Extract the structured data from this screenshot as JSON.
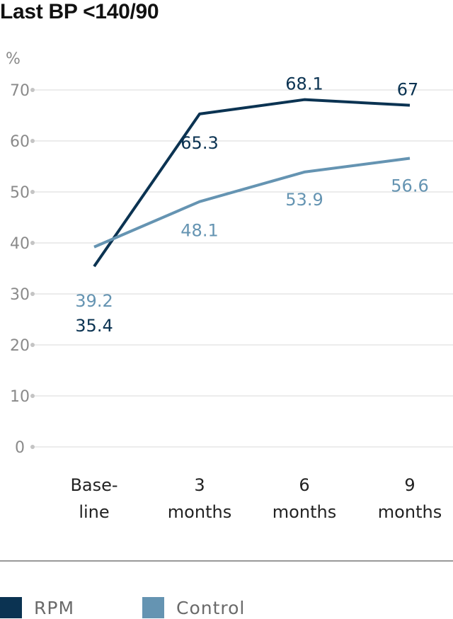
{
  "chart_data": {
    "type": "line",
    "title": "Last BP <140/90",
    "ylabel": "%",
    "ylim": [
      0,
      70
    ],
    "yticks": [
      0,
      10,
      20,
      30,
      40,
      50,
      60,
      70
    ],
    "grid": true,
    "legend_position": "bottom",
    "categories": [
      [
        "Base-",
        "line"
      ],
      [
        "3",
        "months"
      ],
      [
        "6",
        "months"
      ],
      [
        "9",
        "months"
      ]
    ],
    "series": [
      {
        "name": "RPM",
        "color": "#0b3352",
        "values": [
          35.4,
          65.3,
          68.1,
          67
        ],
        "labels": [
          "35.4",
          "65.3",
          "68.1",
          "67"
        ]
      },
      {
        "name": "Control",
        "color": "#6594b2",
        "values": [
          39.2,
          48.1,
          53.9,
          56.6
        ],
        "labels": [
          "39.2",
          "48.1",
          "53.9",
          "56.6"
        ]
      }
    ]
  }
}
